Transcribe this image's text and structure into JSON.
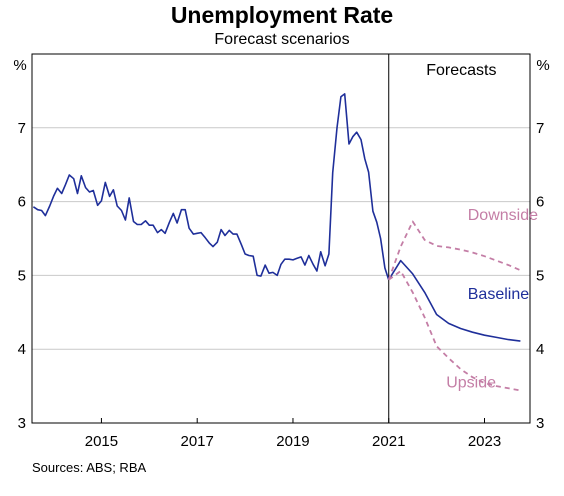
{
  "title": "Unemployment Rate",
  "subtitle": "Forecast scenarios",
  "source": "Sources: ABS; RBA",
  "colors": {
    "history": "#1f2f9a",
    "baseline": "#1f2f9a",
    "scenario": "#c47ea6",
    "grid": "#c9c9c9",
    "divider": "#000000"
  },
  "chart_data": {
    "type": "line",
    "title": "Unemployment Rate",
    "subtitle": "Forecast scenarios",
    "ylabel_left": "%",
    "ylabel_right": "%",
    "ylim": [
      3,
      8
    ],
    "y_ticks": [
      3,
      4,
      5,
      6,
      7
    ],
    "xlim": [
      2013.55,
      2023.95
    ],
    "x_ticks": [
      {
        "label": "2015",
        "pos": 2015.0
      },
      {
        "label": "2017",
        "pos": 2017.0
      },
      {
        "label": "2019",
        "pos": 2019.0
      },
      {
        "label": "2021",
        "pos": 2021.0
      },
      {
        "label": "2023",
        "pos": 2023.0
      }
    ],
    "forecast_start": 2021.0,
    "forecast_label": "Forecasts",
    "grid": true,
    "series": [
      {
        "name": "",
        "style": "solid",
        "x": [
          2013.58,
          2013.67,
          2013.75,
          2013.83,
          2013.92,
          2014.0,
          2014.08,
          2014.17,
          2014.25,
          2014.33,
          2014.42,
          2014.5,
          2014.58,
          2014.67,
          2014.75,
          2014.83,
          2014.92,
          2015.0,
          2015.08,
          2015.17,
          2015.25,
          2015.33,
          2015.42,
          2015.5,
          2015.58,
          2015.67,
          2015.75,
          2015.83,
          2015.92,
          2016.0,
          2016.08,
          2016.17,
          2016.25,
          2016.33,
          2016.42,
          2016.5,
          2016.58,
          2016.67,
          2016.75,
          2016.83,
          2016.92,
          2017.0,
          2017.08,
          2017.17,
          2017.25,
          2017.33,
          2017.42,
          2017.5,
          2017.58,
          2017.67,
          2017.75,
          2017.83,
          2017.92,
          2018.0,
          2018.08,
          2018.17,
          2018.25,
          2018.33,
          2018.42,
          2018.5,
          2018.58,
          2018.67,
          2018.75,
          2018.83,
          2018.92,
          2019.0,
          2019.08,
          2019.17,
          2019.25,
          2019.33,
          2019.42,
          2019.5,
          2019.58,
          2019.67,
          2019.75,
          2019.83,
          2019.92,
          2020.0,
          2020.08,
          2020.17,
          2020.25,
          2020.33,
          2020.42,
          2020.5,
          2020.58,
          2020.67,
          2020.75,
          2020.83,
          2020.92,
          2021.0
        ],
        "values": [
          5.93,
          5.89,
          5.88,
          5.81,
          5.94,
          6.07,
          6.18,
          6.11,
          6.23,
          6.36,
          6.31,
          6.11,
          6.35,
          6.19,
          6.13,
          6.15,
          5.95,
          6.01,
          6.26,
          6.07,
          6.16,
          5.94,
          5.88,
          5.75,
          6.05,
          5.73,
          5.69,
          5.69,
          5.74,
          5.68,
          5.68,
          5.58,
          5.62,
          5.57,
          5.72,
          5.84,
          5.71,
          5.89,
          5.89,
          5.64,
          5.56,
          5.57,
          5.58,
          5.51,
          5.44,
          5.39,
          5.45,
          5.62,
          5.54,
          5.61,
          5.56,
          5.56,
          5.42,
          5.29,
          5.27,
          5.26,
          5.0,
          4.99,
          5.14,
          5.03,
          5.04,
          5.0,
          5.15,
          5.22,
          5.22,
          5.21,
          5.23,
          5.25,
          5.14,
          5.27,
          5.15,
          5.06,
          5.32,
          5.13,
          5.29,
          6.39,
          7.0,
          7.42,
          7.46,
          6.78,
          6.88,
          6.94,
          6.84,
          6.58,
          6.4,
          5.87,
          5.72,
          5.5,
          5.1,
          4.94
        ]
      },
      {
        "name": "Baseline",
        "style": "solid",
        "x": [
          2021.0,
          2021.25,
          2021.5,
          2021.75,
          2022.0,
          2022.25,
          2022.5,
          2022.75,
          2023.0,
          2023.25,
          2023.5,
          2023.75
        ],
        "values": [
          4.94,
          5.2,
          5.02,
          4.77,
          4.47,
          4.35,
          4.28,
          4.23,
          4.19,
          4.16,
          4.13,
          4.11
        ]
      },
      {
        "name": "Downside",
        "style": "dashed",
        "x": [
          2021.0,
          2021.25,
          2021.5,
          2021.75,
          2022.0,
          2022.25,
          2022.5,
          2022.75,
          2023.0,
          2023.25,
          2023.5,
          2023.75
        ],
        "values": [
          4.94,
          5.39,
          5.73,
          5.48,
          5.4,
          5.38,
          5.35,
          5.31,
          5.26,
          5.2,
          5.14,
          5.07
        ]
      },
      {
        "name": "Upside",
        "style": "dashed",
        "x": [
          2021.0,
          2021.25,
          2021.5,
          2021.75,
          2022.0,
          2022.25,
          2022.5,
          2022.75,
          2023.0,
          2023.25,
          2023.5,
          2023.75
        ],
        "values": [
          4.94,
          5.06,
          4.77,
          4.43,
          4.04,
          3.88,
          3.73,
          3.62,
          3.54,
          3.5,
          3.47,
          3.44
        ]
      }
    ],
    "annotations": [
      {
        "text": "Downside",
        "x": 2022.65,
        "y": 5.75
      },
      {
        "text": "Baseline",
        "x": 2022.65,
        "y": 4.68
      },
      {
        "text": "Upside",
        "x": 2022.2,
        "y": 3.48
      }
    ]
  }
}
